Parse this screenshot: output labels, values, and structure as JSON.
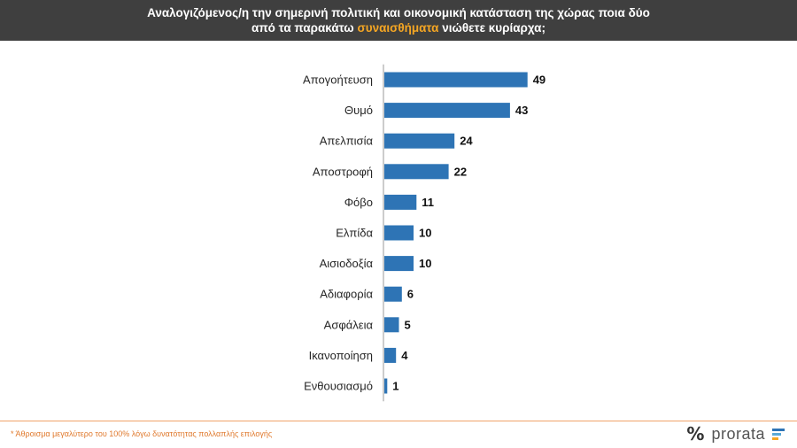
{
  "header": {
    "line1": "Αναλογιζόμενος/η την σημερινή πολιτική και οικονομική κατάσταση της χώρας ποια δύο",
    "line2_pre": "από τα παρακάτω",
    "line2_highlight": "συναισθήματα",
    "line2_post": "νιώθετε κυρίαρχα;"
  },
  "chart_data": {
    "type": "bar",
    "orientation": "horizontal",
    "categories": [
      "Απογοήτευση",
      "Θυμό",
      "Απελπισία",
      "Αποστροφή",
      "Φόβο",
      "Ελπίδα",
      "Αισιοδοξία",
      "Αδιαφορία",
      "Ασφάλεια",
      "Ικανοποίηση",
      "Ενθουσιασμό"
    ],
    "values": [
      49,
      43,
      24,
      22,
      11,
      10,
      10,
      6,
      5,
      4,
      1
    ],
    "xlim": [
      0,
      55
    ],
    "grid": false,
    "legend": "none",
    "bar_color": "#2e74b5"
  },
  "footnote": "* Άθροισμα μεγαλύτερο του 100% λόγω δυνατότητας πολλαπλής επιλογής",
  "logo": {
    "symbol": "%",
    "name": "prorata",
    "bar_colors": [
      "#2e74b5",
      "#5aa9d6",
      "#f5a623"
    ]
  }
}
